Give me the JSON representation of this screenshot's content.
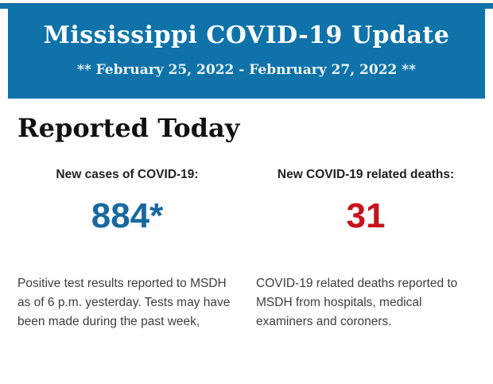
{
  "header": {
    "title": "Mississippi COVID-19 Update",
    "date_range": "** February 25, 2022 - Febnruary 27, 2022 **",
    "background_color": "#0f73aa"
  },
  "main": {
    "section_title": "Reported Today",
    "stats": [
      {
        "label": "New cases of COVID-19:",
        "value": "884*",
        "value_color": "#17699f",
        "description": "Positive test results reported to MSDH as of 6 p.m. yesterday. Tests may have been made during the past week,"
      },
      {
        "label": "New COVID-19 related deaths:",
        "value": "31",
        "value_color": "#c6131d",
        "description": "COVID-19 related deaths reported to MSDH from hospitals, medical examiners and coroners."
      }
    ]
  }
}
